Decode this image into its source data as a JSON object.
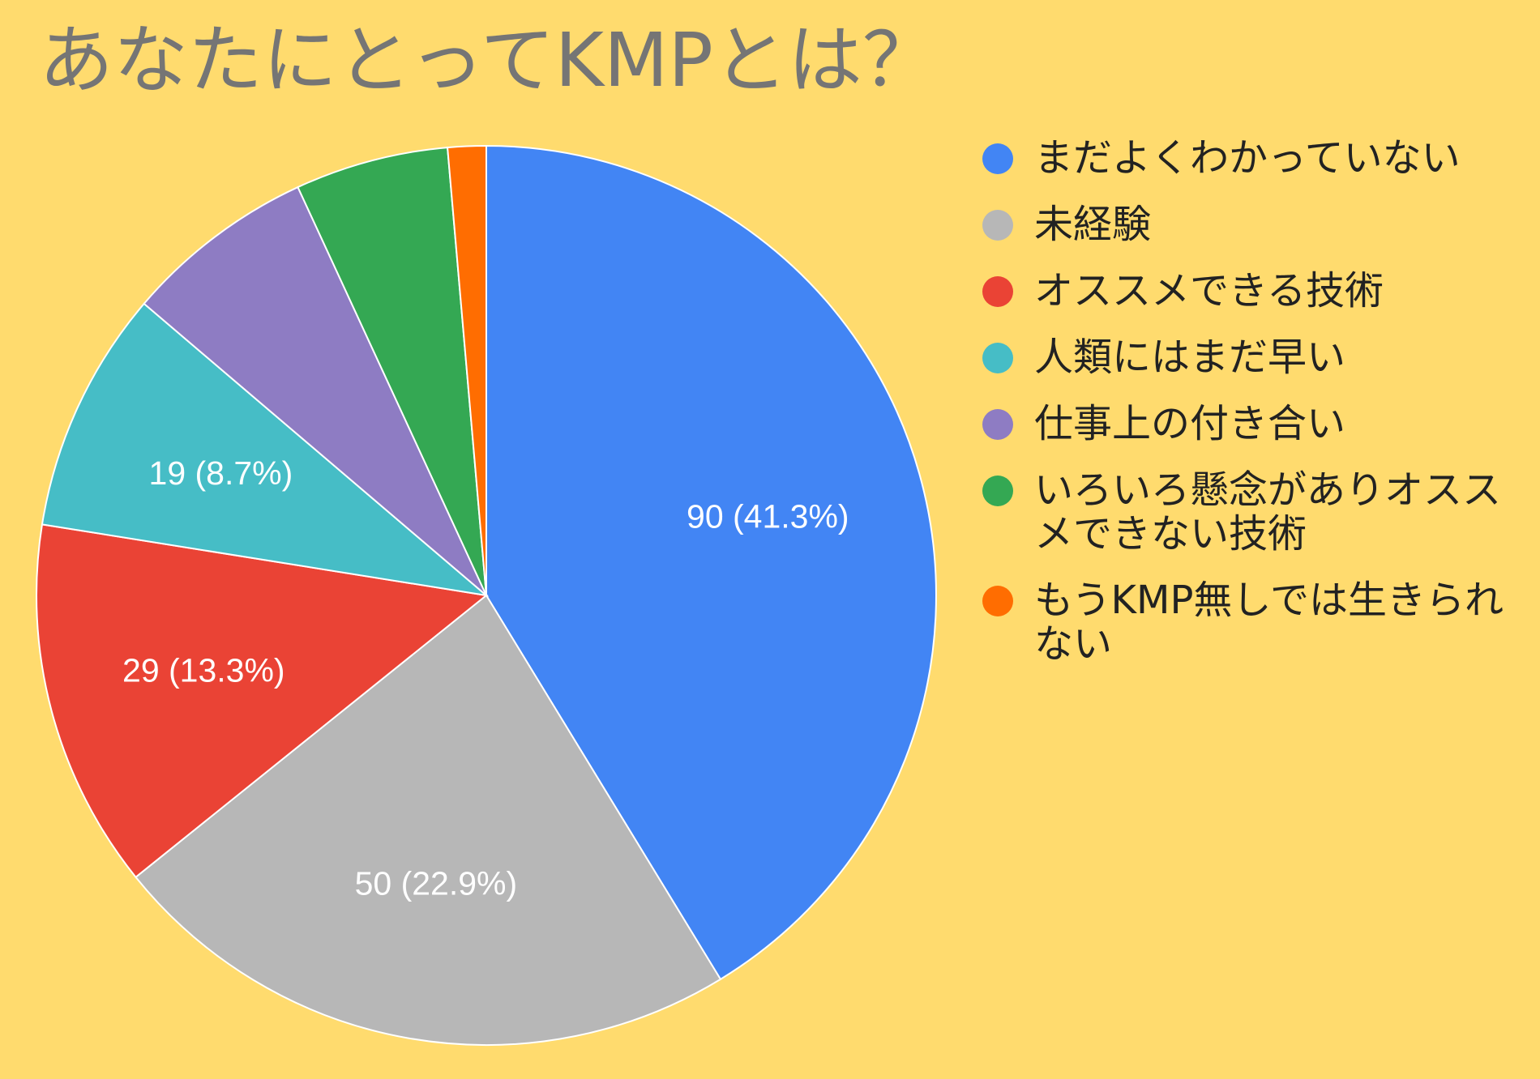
{
  "chart_data": {
    "type": "pie",
    "title": "あなたにとってKMPとは？",
    "categories": [
      "まだよくわかっていない",
      "未経験",
      "オススメできる技術",
      "人類にはまだ早い",
      "仕事上の付き合い",
      "いろいろ懸念がありオススメできない技術",
      "もうKMP無しでは生きられない"
    ],
    "values": [
      90,
      50,
      29,
      19,
      15,
      12,
      3
    ],
    "data_labels": [
      "90 (41.3%)",
      "50 (22.9%)",
      "29 (13.3%)",
      "19 (8.7%)",
      "",
      "",
      ""
    ],
    "colors": [
      "#4285F4",
      "#B7B7B7",
      "#EA4335",
      "#46BDC6",
      "#8E7CC3",
      "#34A853",
      "#FF6D01"
    ],
    "legend_position": "right",
    "start_angle": "top, clockwise"
  }
}
